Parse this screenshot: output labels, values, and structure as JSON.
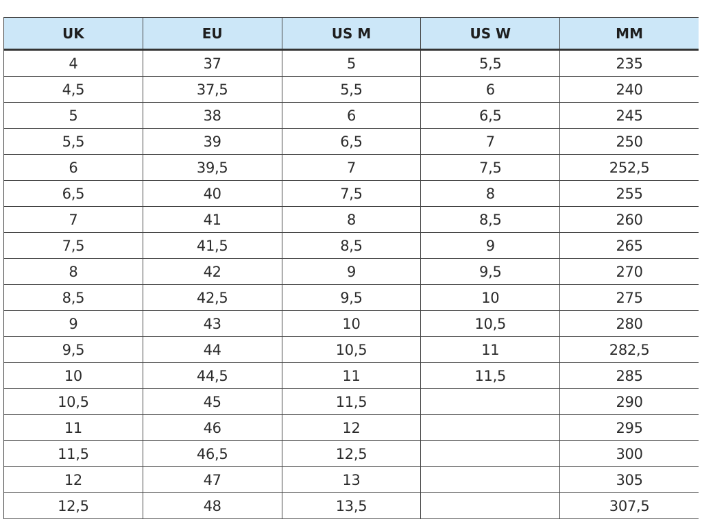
{
  "table": {
    "headers": [
      "UK",
      "EU",
      "US M",
      "US W",
      "MM"
    ],
    "rows": [
      [
        "4",
        "37",
        "5",
        "5,5",
        "235"
      ],
      [
        "4,5",
        "37,5",
        "5,5",
        "6",
        "240"
      ],
      [
        "5",
        "38",
        "6",
        "6,5",
        "245"
      ],
      [
        "5,5",
        "39",
        "6,5",
        "7",
        "250"
      ],
      [
        "6",
        "39,5",
        "7",
        "7,5",
        "252,5"
      ],
      [
        "6,5",
        "40",
        "7,5",
        "8",
        "255"
      ],
      [
        "7",
        "41",
        "8",
        "8,5",
        "260"
      ],
      [
        "7,5",
        "41,5",
        "8,5",
        "9",
        "265"
      ],
      [
        "8",
        "42",
        "9",
        "9,5",
        "270"
      ],
      [
        "8,5",
        "42,5",
        "9,5",
        "10",
        "275"
      ],
      [
        "9",
        "43",
        "10",
        "10,5",
        "280"
      ],
      [
        "9,5",
        "44",
        "10,5",
        "11",
        "282,5"
      ],
      [
        "10",
        "44,5",
        "11",
        "11,5",
        "285"
      ],
      [
        "10,5",
        "45",
        "11,5",
        "",
        "290"
      ],
      [
        "11",
        "46",
        "12",
        "",
        "295"
      ],
      [
        "11,5",
        "46,5",
        "12,5",
        "",
        "300"
      ],
      [
        "12",
        "47",
        "13",
        "",
        "305"
      ],
      [
        "12,5",
        "48",
        "13,5",
        "",
        "307,5"
      ]
    ]
  },
  "colors": {
    "header_background": "#cce7f8",
    "border": "#444444",
    "text": "#2b2b2b"
  }
}
